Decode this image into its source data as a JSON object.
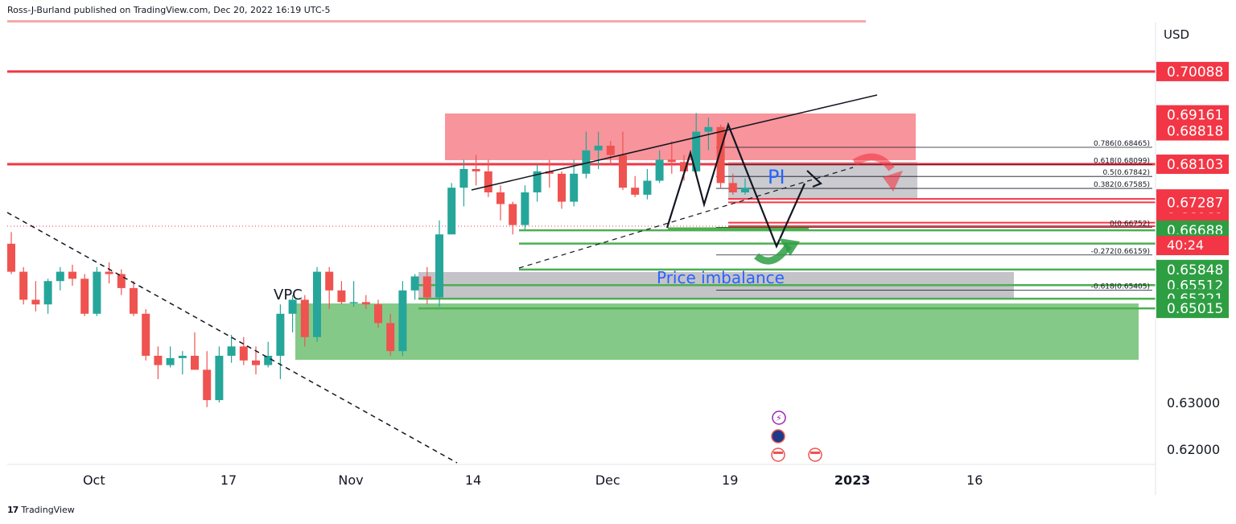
{
  "header": {
    "published": "Ross-J-Burland published on TradingView.com, Dec 20, 2022 16:19 UTC-5"
  },
  "footer": {
    "logo": "17",
    "brand": "TradingView"
  },
  "axis": {
    "currency": "USD",
    "countdown": "40:24"
  },
  "annotations": {
    "vpc": "VPC",
    "pi": "PI",
    "price_imbalance": "Price imbalance"
  },
  "colors": {
    "up": "#26a69a",
    "down": "#ef5350",
    "resistance": "#f23645",
    "support": "#4caf50"
  },
  "chart_data": {
    "type": "candlestick",
    "instrument_currency": "USD",
    "y_range": [
      0.615,
      0.7125
    ],
    "red_levels": [
      0.70088,
      0.69161,
      0.68818,
      0.68103,
      0.67359,
      0.67287,
      0.66961,
      0.66852,
      0.66775
    ],
    "green_levels": [
      0.66688,
      0.66402,
      0.65848,
      0.65512,
      0.65221,
      0.65015
    ],
    "axis_ticks": [
      0.63,
      0.62
    ],
    "x_labels": [
      {
        "i": 4,
        "label": "Oct"
      },
      {
        "i": 15,
        "label": "17"
      },
      {
        "i": 25,
        "label": "Nov"
      },
      {
        "i": 35,
        "label": "14"
      },
      {
        "i": 46,
        "label": "Dec"
      },
      {
        "i": 56,
        "label": "19"
      },
      {
        "i": 66,
        "label": "2023"
      },
      {
        "i": 76,
        "label": "16"
      }
    ],
    "fib_levels": [
      {
        "label": "0.786(0.68465)",
        "value": 0.68465
      },
      {
        "label": "0.618(0.68099)",
        "value": 0.68099
      },
      {
        "label": "0.5(0.67842)",
        "value": 0.67842
      },
      {
        "label": "0.382(0.67585)",
        "value": 0.67585
      },
      {
        "label": "0(0.66752)",
        "value": 0.66752
      },
      {
        "label": "-0.272(0.66159)",
        "value": 0.66159
      },
      {
        "label": "-0.618(0.65405)",
        "value": 0.65405
      }
    ],
    "candles": [
      [
        0.664,
        0.658,
        0.6665,
        0.6575
      ],
      [
        0.658,
        0.652,
        0.659,
        0.651
      ],
      [
        0.652,
        0.651,
        0.656,
        0.6495
      ],
      [
        0.651,
        0.656,
        0.6565,
        0.649
      ],
      [
        0.656,
        0.658,
        0.659,
        0.654
      ],
      [
        0.658,
        0.6565,
        0.6595,
        0.655
      ],
      [
        0.6565,
        0.649,
        0.6575,
        0.6485
      ],
      [
        0.649,
        0.658,
        0.659,
        0.6485
      ],
      [
        0.658,
        0.6575,
        0.66,
        0.6555
      ],
      [
        0.6575,
        0.6545,
        0.6585,
        0.653
      ],
      [
        0.6545,
        0.649,
        0.656,
        0.6485
      ],
      [
        0.649,
        0.64,
        0.65,
        0.639
      ],
      [
        0.64,
        0.638,
        0.642,
        0.635
      ],
      [
        0.638,
        0.6395,
        0.642,
        0.6375
      ],
      [
        0.6395,
        0.64,
        0.641,
        0.636
      ],
      [
        0.64,
        0.637,
        0.645,
        0.637
      ],
      [
        0.637,
        0.6305,
        0.641,
        0.629
      ],
      [
        0.6305,
        0.64,
        0.642,
        0.63
      ],
      [
        0.64,
        0.642,
        0.6445,
        0.6385
      ],
      [
        0.642,
        0.639,
        0.644,
        0.638
      ],
      [
        0.639,
        0.638,
        0.642,
        0.636
      ],
      [
        0.638,
        0.64,
        0.643,
        0.6375
      ],
      [
        0.64,
        0.649,
        0.651,
        0.635
      ],
      [
        0.649,
        0.652,
        0.653,
        0.645
      ],
      [
        0.652,
        0.644,
        0.653,
        0.642
      ],
      [
        0.644,
        0.658,
        0.659,
        0.643
      ],
      [
        0.658,
        0.654,
        0.659,
        0.65
      ],
      [
        0.654,
        0.6515,
        0.656,
        0.651
      ],
      [
        0.6515,
        0.6515,
        0.656,
        0.6505
      ],
      [
        0.6515,
        0.651,
        0.653,
        0.65
      ],
      [
        0.651,
        0.647,
        0.652,
        0.646
      ],
      [
        0.647,
        0.641,
        0.649,
        0.64
      ],
      [
        0.641,
        0.654,
        0.656,
        0.64
      ],
      [
        0.654,
        0.657,
        0.6575,
        0.652
      ],
      [
        0.657,
        0.6525,
        0.659,
        0.651
      ],
      [
        0.6525,
        0.666,
        0.669,
        0.6505
      ],
      [
        0.666,
        0.676,
        0.677,
        0.666
      ],
      [
        0.676,
        0.68,
        0.682,
        0.672
      ],
      [
        0.68,
        0.6795,
        0.683,
        0.6765
      ],
      [
        0.6795,
        0.675,
        0.682,
        0.674
      ],
      [
        0.675,
        0.6725,
        0.6765,
        0.669
      ],
      [
        0.6725,
        0.668,
        0.673,
        0.666
      ],
      [
        0.668,
        0.675,
        0.6765,
        0.667
      ],
      [
        0.675,
        0.6795,
        0.681,
        0.673
      ],
      [
        0.6795,
        0.679,
        0.682,
        0.676
      ],
      [
        0.679,
        0.673,
        0.6795,
        0.6715
      ],
      [
        0.673,
        0.679,
        0.682,
        0.672
      ],
      [
        0.679,
        0.684,
        0.688,
        0.678
      ],
      [
        0.684,
        0.685,
        0.688,
        0.68
      ],
      [
        0.685,
        0.683,
        0.686,
        0.681
      ],
      [
        0.683,
        0.676,
        0.688,
        0.6755
      ],
      [
        0.676,
        0.6745,
        0.6785,
        0.674
      ],
      [
        0.6745,
        0.6775,
        0.68,
        0.6735
      ],
      [
        0.6775,
        0.682,
        0.684,
        0.677
      ],
      [
        0.682,
        0.6815,
        0.686,
        0.679
      ],
      [
        0.6815,
        0.6795,
        0.683,
        0.6775
      ],
      [
        0.6795,
        0.688,
        0.692,
        0.679
      ],
      [
        0.688,
        0.689,
        0.691,
        0.684
      ],
      [
        0.689,
        0.677,
        0.6895,
        0.676
      ],
      [
        0.677,
        0.675,
        0.679,
        0.6745
      ],
      [
        0.675,
        0.676,
        0.678,
        0.6745
      ]
    ]
  }
}
